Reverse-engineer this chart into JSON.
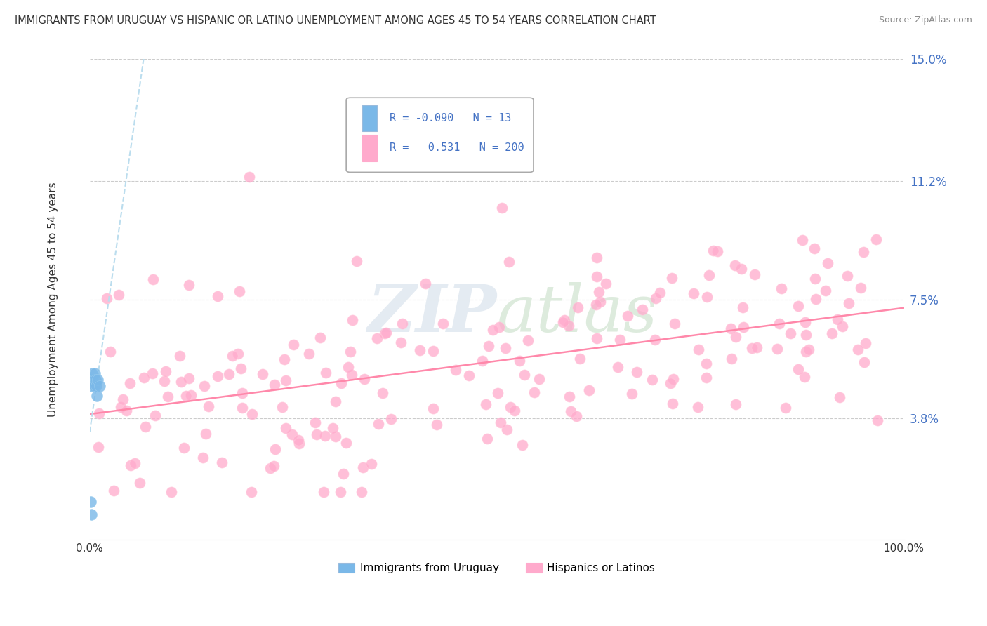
{
  "title": "IMMIGRANTS FROM URUGUAY VS HISPANIC OR LATINO UNEMPLOYMENT AMONG AGES 45 TO 54 YEARS CORRELATION CHART",
  "source": "Source: ZipAtlas.com",
  "ylabel": "Unemployment Among Ages 45 to 54 years",
  "xlim": [
    0,
    1.0
  ],
  "ylim": [
    0,
    0.15
  ],
  "ytick_vals": [
    0.038,
    0.075,
    0.112,
    0.15
  ],
  "ytick_labels": [
    "3.8%",
    "7.5%",
    "11.2%",
    "15.0%"
  ],
  "background_color": "#ffffff",
  "legend1_R": "-0.090",
  "legend1_N": "13",
  "legend2_R": "0.531",
  "legend2_N": "200",
  "color_uruguay": "#7ab8e8",
  "color_hispanic": "#ffaacc",
  "trendline_uru_color": "#aaccee",
  "trendline_hisp_color": "#ff88aa"
}
